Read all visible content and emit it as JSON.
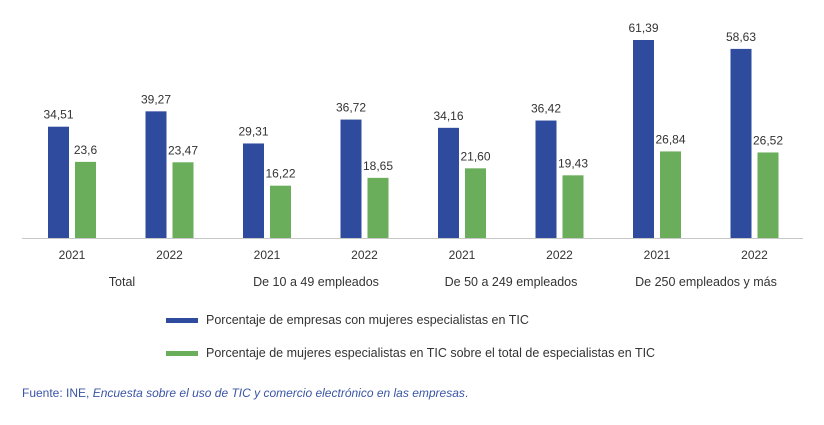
{
  "chart_data": {
    "type": "bar",
    "title": "",
    "xlabel": "",
    "ylabel": "",
    "ylim": [
      0,
      65
    ],
    "grid": false,
    "legend_position": "bottom-left",
    "groups": [
      "Total",
      "De 10 a 49 empleados",
      "De 50 a 249 empleados",
      "De 250 empleados y más"
    ],
    "categories": [
      "2021",
      "2022",
      "2021",
      "2022",
      "2021",
      "2022",
      "2021",
      "2022"
    ],
    "series": [
      {
        "name": "Porcentaje de empresas con mujeres especialistas en TIC",
        "color": "#2e4b9e",
        "values": [
          34.51,
          39.27,
          29.31,
          36.72,
          34.16,
          36.42,
          61.39,
          58.63
        ],
        "labels": [
          "34,51",
          "39,27",
          "29,31",
          "36,72",
          "34,16",
          "36,42",
          "61,39",
          "58,63"
        ]
      },
      {
        "name": "Porcentaje de mujeres especialistas en TIC sobre el total de especialistas en TIC",
        "color": "#6aad5a",
        "values": [
          23.6,
          23.47,
          16.22,
          18.65,
          21.6,
          19.43,
          26.84,
          26.52
        ],
        "labels": [
          "23,6",
          "23,47",
          "16,22",
          "18,65",
          "21,60",
          "19,43",
          "26,84",
          "26,52"
        ]
      }
    ]
  },
  "legend": {
    "item1": "Porcentaje de empresas con mujeres especialistas en TIC",
    "item2": "Porcentaje de mujeres especialistas en TIC sobre el total de especialistas en TIC"
  },
  "source": {
    "prefix": "Fuente: INE, ",
    "title": "Encuesta sobre el uso de TIC y comercio electrónico en las empresas",
    "suffix": "."
  },
  "colors": {
    "axis": "#c8c8c8",
    "text": "#333333",
    "source": "#3a55a4"
  }
}
